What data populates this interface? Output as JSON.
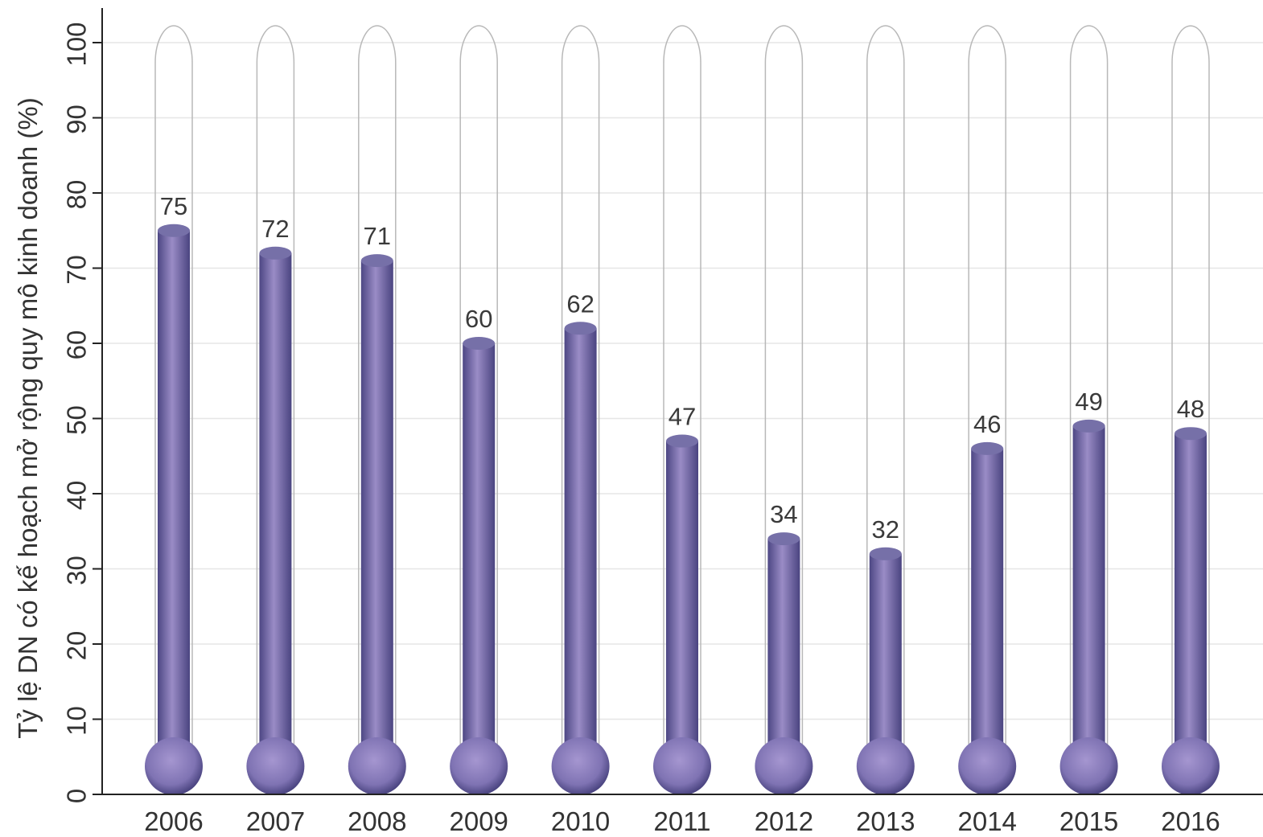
{
  "chart_data": {
    "type": "bar",
    "style": "thermometer",
    "categories": [
      "2006",
      "2007",
      "2008",
      "2009",
      "2010",
      "2011",
      "2012",
      "2013",
      "2014",
      "2015",
      "2016"
    ],
    "series": [
      {
        "values": [
          75,
          72,
          71,
          60,
          62,
          47,
          34,
          32,
          46,
          49,
          48
        ]
      }
    ],
    "ylabel": "Tỷ lệ DN có kế hoạch mở rộng quy mô kinh doanh (%)",
    "xlabel": "",
    "ylim": [
      0,
      100
    ],
    "yticks": [
      0,
      10,
      20,
      30,
      40,
      50,
      60,
      70,
      80,
      90,
      100
    ],
    "grid": true,
    "colors": {
      "bar": "#7a6fa8",
      "bar_dark": "#4d4784",
      "bulb": "#8b7fb8",
      "tube_outline": "#b8b8b8",
      "grid": "#e6e6e6"
    }
  }
}
